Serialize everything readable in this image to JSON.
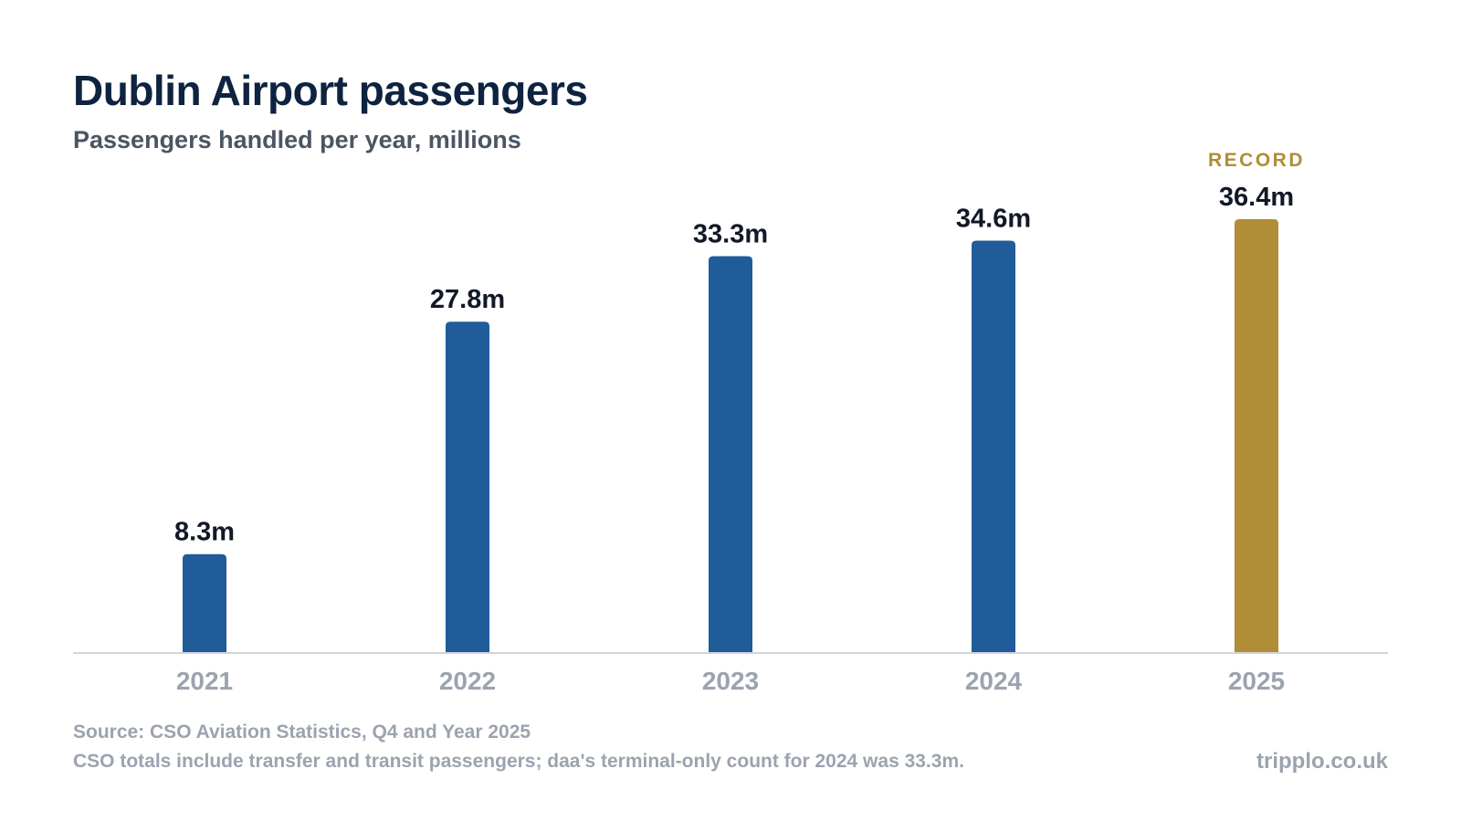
{
  "header": {
    "title": "Dublin Airport passengers",
    "subtitle": "Passengers handled per year, millions"
  },
  "chart_data": {
    "type": "bar",
    "categories": [
      "2021",
      "2022",
      "2023",
      "2024",
      "2025"
    ],
    "values": [
      8.3,
      27.8,
      33.3,
      34.6,
      36.4
    ],
    "data_labels": [
      "8.3m",
      "27.8m",
      "33.3m",
      "34.6m",
      "36.4m"
    ],
    "highlight": {
      "index": 4,
      "label": "RECORD"
    },
    "ylim": [
      0,
      36.4
    ],
    "grid": false,
    "legend": "none",
    "colors": {
      "bar": "#1f5c99",
      "highlight": "#b08d36",
      "value_label": "#111827",
      "tick_label": "#9ca3af",
      "baseline": "#d1d5db"
    }
  },
  "footer": {
    "source": "Source: CSO Aviation Statistics, Q4 and Year 2025",
    "note": "CSO totals include transfer and transit passengers; daa's terminal-only count for 2024 was 33.3m.",
    "brand": "tripplo.co.uk"
  }
}
